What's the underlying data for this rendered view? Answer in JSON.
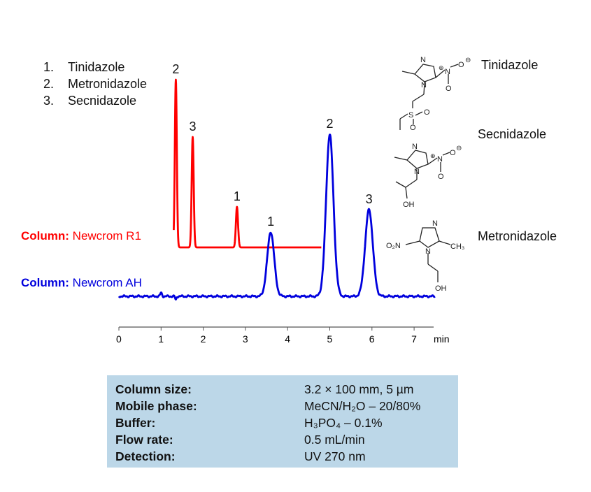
{
  "legend": [
    {
      "num": "1.",
      "name": "Tinidazole"
    },
    {
      "num": "2.",
      "name": "Metronidazole"
    },
    {
      "num": "3.",
      "name": "Secnidazole"
    }
  ],
  "compound_names": {
    "tinidazole": "Tinidazole",
    "secnidazole": "Secnidazole",
    "metronidazole": "Metronidazole"
  },
  "structure_text": {
    "tinidazole": {
      "n_top": "N",
      "n_ring": "N",
      "nitro_n": "N",
      "nitro_o": "O",
      "nitro_o2": "O",
      "plus": "⊕",
      "minus": "⊖",
      "s": "S",
      "o1": "O",
      "o2": "O"
    },
    "secnidazole": {
      "n_top": "N",
      "n_ring": "N",
      "nitro_n": "N",
      "nitro_o": "O",
      "nitro_o2": "O",
      "plus": "⊕",
      "minus": "⊖",
      "oh": "OH"
    },
    "metronidazole": {
      "n_top": "N",
      "n_ring": "N",
      "o2n": "O₂N",
      "ch3": "CH₃",
      "oh": "OH"
    }
  },
  "columns": [
    {
      "prefix": "Column:",
      "name": "Newcrom R1",
      "color": "#ff0000"
    },
    {
      "prefix": "Column:",
      "name": "Newcrom AH",
      "color": "#0000dd"
    }
  ],
  "conditions": [
    {
      "key": "Column size:",
      "value": "3.2 × 100 mm, 5 µm"
    },
    {
      "key": "Mobile phase:",
      "value": "MeCN/H₂O – 20/80%"
    },
    {
      "key": "Buffer:",
      "value": "H₃PO₄ – 0.1%"
    },
    {
      "key": "Flow rate:",
      "value": "0.5 mL/min"
    },
    {
      "key": "Detection:",
      "value": "UV 270 nm"
    }
  ],
  "chart_data": {
    "type": "line",
    "xlabel": "min",
    "xlim": [
      0,
      7.5
    ],
    "xticks": [
      "0",
      "1",
      "2",
      "3",
      "4",
      "5",
      "6",
      "7"
    ],
    "y_axis_shown": false,
    "series": [
      {
        "name": "Newcrom R1",
        "color": "#ff0000",
        "x_range": [
          1.3,
          4.8
        ],
        "peaks": [
          {
            "label": "2",
            "compound": "Metronidazole",
            "rt": 1.35,
            "height": 240
          },
          {
            "label": "3",
            "compound": "Secnidazole",
            "rt": 1.75,
            "height": 158
          },
          {
            "label": "1",
            "compound": "Tinidazole",
            "rt": 2.8,
            "height": 58
          }
        ]
      },
      {
        "name": "Newcrom AH",
        "color": "#0000dd",
        "x_range": [
          0,
          7.5
        ],
        "peaks": [
          {
            "label": "1",
            "compound": "Tinidazole",
            "rt": 3.6,
            "height": 92
          },
          {
            "label": "2",
            "compound": "Metronidazole",
            "rt": 5.0,
            "height": 232
          },
          {
            "label": "3",
            "compound": "Secnidazole",
            "rt": 5.93,
            "height": 124
          }
        ]
      }
    ]
  }
}
